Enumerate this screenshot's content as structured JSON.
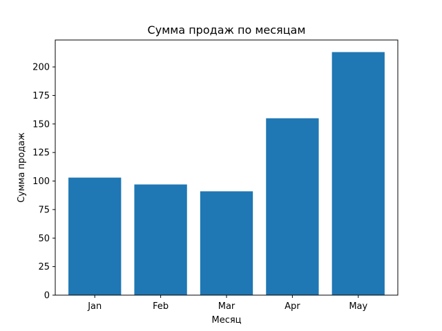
{
  "chart_data": {
    "type": "bar",
    "title": "Сумма продаж по месяцам",
    "xlabel": "Месяц",
    "ylabel": "Сумма продаж",
    "categories": [
      "Jan",
      "Feb",
      "Mar",
      "Apr",
      "May"
    ],
    "values": [
      103,
      97,
      91,
      155,
      213
    ],
    "ylim": [
      0,
      223.6
    ],
    "yticks": [
      0,
      25,
      50,
      75,
      100,
      125,
      150,
      175,
      200
    ],
    "bar_color": "#1f77b4",
    "grid": false,
    "legend": "none"
  }
}
